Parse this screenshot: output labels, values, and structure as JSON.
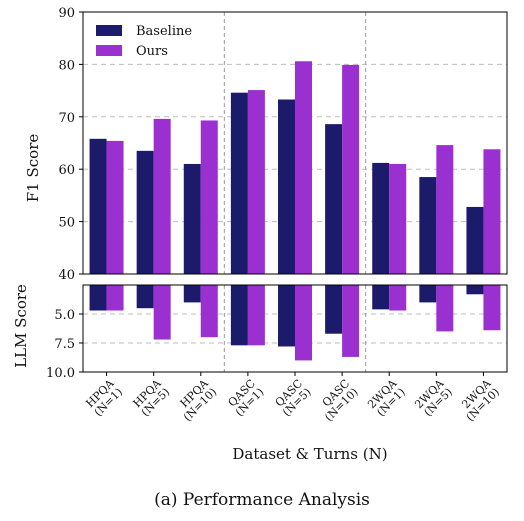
{
  "caption": "(a) Performance Analysis",
  "chart_data": {
    "type": "bar",
    "categories": [
      [
        "HPQA",
        "(N=1)"
      ],
      [
        "HPQA",
        "(N=5)"
      ],
      [
        "HPQA",
        "(N=10)"
      ],
      [
        "QASC",
        "(N=1)"
      ],
      [
        "QASC",
        "(N=5)"
      ],
      [
        "QASC",
        "(N=10)"
      ],
      [
        "2WQA",
        "(N=1)"
      ],
      [
        "2WQA",
        "(N=5)"
      ],
      [
        "2WQA",
        "(N=10)"
      ]
    ],
    "series": [
      {
        "name": "Baseline",
        "color": "#1c1a6b",
        "f1": [
          65.8,
          63.5,
          61.0,
          74.6,
          73.3,
          68.6,
          61.2,
          58.5,
          52.8
        ],
        "llm": [
          4.7,
          4.5,
          4.0,
          7.7,
          7.8,
          6.7,
          4.6,
          4.0,
          3.3
        ]
      },
      {
        "name": "Ours",
        "color": "#9b30d0",
        "f1": [
          65.4,
          69.6,
          69.3,
          75.1,
          80.6,
          79.9,
          61.0,
          64.6,
          63.8
        ],
        "llm": [
          4.7,
          7.2,
          7.0,
          7.7,
          9.0,
          8.7,
          4.7,
          6.5,
          6.4
        ]
      }
    ],
    "xlabel": "Dataset & Turns (N)",
    "top_panel": {
      "ylabel": "F1 Score",
      "ylim": [
        40,
        90
      ],
      "yticks": [
        40,
        50,
        60,
        70,
        80,
        90
      ]
    },
    "bottom_panel": {
      "ylabel": "LLM Score",
      "ylim": [
        2.5,
        10.0
      ],
      "inverted": true,
      "yticks": [
        "5.0",
        "7.5",
        "10.0"
      ]
    },
    "group_separators_after": [
      3,
      6
    ],
    "grid": true,
    "legend_position": "top-left"
  }
}
